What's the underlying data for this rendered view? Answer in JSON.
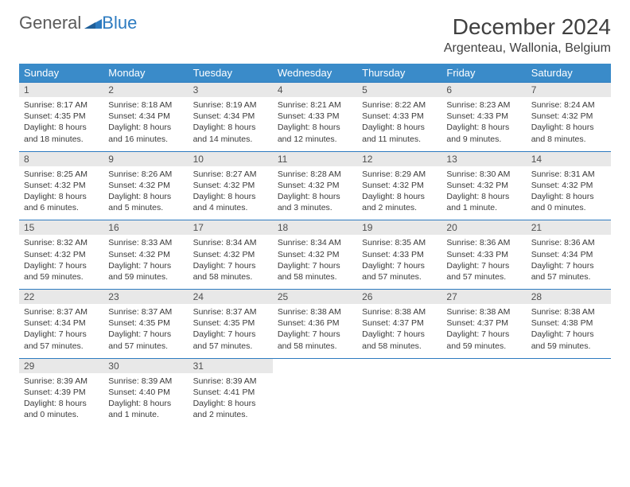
{
  "brand": {
    "part1": "General",
    "part2": "Blue"
  },
  "title": "December 2024",
  "location": "Argenteau, Wallonia, Belgium",
  "colors": {
    "header_bg": "#3a8bc9",
    "header_text": "#ffffff",
    "daynum_bg": "#e8e8e8",
    "rule": "#2d7bc0",
    "brand_blue": "#2d7bc0",
    "text": "#3a3a3a"
  },
  "weekdays": [
    "Sunday",
    "Monday",
    "Tuesday",
    "Wednesday",
    "Thursday",
    "Friday",
    "Saturday"
  ],
  "days": [
    {
      "n": "1",
      "sunrise": "Sunrise: 8:17 AM",
      "sunset": "Sunset: 4:35 PM",
      "daylight1": "Daylight: 8 hours",
      "daylight2": "and 18 minutes."
    },
    {
      "n": "2",
      "sunrise": "Sunrise: 8:18 AM",
      "sunset": "Sunset: 4:34 PM",
      "daylight1": "Daylight: 8 hours",
      "daylight2": "and 16 minutes."
    },
    {
      "n": "3",
      "sunrise": "Sunrise: 8:19 AM",
      "sunset": "Sunset: 4:34 PM",
      "daylight1": "Daylight: 8 hours",
      "daylight2": "and 14 minutes."
    },
    {
      "n": "4",
      "sunrise": "Sunrise: 8:21 AM",
      "sunset": "Sunset: 4:33 PM",
      "daylight1": "Daylight: 8 hours",
      "daylight2": "and 12 minutes."
    },
    {
      "n": "5",
      "sunrise": "Sunrise: 8:22 AM",
      "sunset": "Sunset: 4:33 PM",
      "daylight1": "Daylight: 8 hours",
      "daylight2": "and 11 minutes."
    },
    {
      "n": "6",
      "sunrise": "Sunrise: 8:23 AM",
      "sunset": "Sunset: 4:33 PM",
      "daylight1": "Daylight: 8 hours",
      "daylight2": "and 9 minutes."
    },
    {
      "n": "7",
      "sunrise": "Sunrise: 8:24 AM",
      "sunset": "Sunset: 4:32 PM",
      "daylight1": "Daylight: 8 hours",
      "daylight2": "and 8 minutes."
    },
    {
      "n": "8",
      "sunrise": "Sunrise: 8:25 AM",
      "sunset": "Sunset: 4:32 PM",
      "daylight1": "Daylight: 8 hours",
      "daylight2": "and 6 minutes."
    },
    {
      "n": "9",
      "sunrise": "Sunrise: 8:26 AM",
      "sunset": "Sunset: 4:32 PM",
      "daylight1": "Daylight: 8 hours",
      "daylight2": "and 5 minutes."
    },
    {
      "n": "10",
      "sunrise": "Sunrise: 8:27 AM",
      "sunset": "Sunset: 4:32 PM",
      "daylight1": "Daylight: 8 hours",
      "daylight2": "and 4 minutes."
    },
    {
      "n": "11",
      "sunrise": "Sunrise: 8:28 AM",
      "sunset": "Sunset: 4:32 PM",
      "daylight1": "Daylight: 8 hours",
      "daylight2": "and 3 minutes."
    },
    {
      "n": "12",
      "sunrise": "Sunrise: 8:29 AM",
      "sunset": "Sunset: 4:32 PM",
      "daylight1": "Daylight: 8 hours",
      "daylight2": "and 2 minutes."
    },
    {
      "n": "13",
      "sunrise": "Sunrise: 8:30 AM",
      "sunset": "Sunset: 4:32 PM",
      "daylight1": "Daylight: 8 hours",
      "daylight2": "and 1 minute."
    },
    {
      "n": "14",
      "sunrise": "Sunrise: 8:31 AM",
      "sunset": "Sunset: 4:32 PM",
      "daylight1": "Daylight: 8 hours",
      "daylight2": "and 0 minutes."
    },
    {
      "n": "15",
      "sunrise": "Sunrise: 8:32 AM",
      "sunset": "Sunset: 4:32 PM",
      "daylight1": "Daylight: 7 hours",
      "daylight2": "and 59 minutes."
    },
    {
      "n": "16",
      "sunrise": "Sunrise: 8:33 AM",
      "sunset": "Sunset: 4:32 PM",
      "daylight1": "Daylight: 7 hours",
      "daylight2": "and 59 minutes."
    },
    {
      "n": "17",
      "sunrise": "Sunrise: 8:34 AM",
      "sunset": "Sunset: 4:32 PM",
      "daylight1": "Daylight: 7 hours",
      "daylight2": "and 58 minutes."
    },
    {
      "n": "18",
      "sunrise": "Sunrise: 8:34 AM",
      "sunset": "Sunset: 4:32 PM",
      "daylight1": "Daylight: 7 hours",
      "daylight2": "and 58 minutes."
    },
    {
      "n": "19",
      "sunrise": "Sunrise: 8:35 AM",
      "sunset": "Sunset: 4:33 PM",
      "daylight1": "Daylight: 7 hours",
      "daylight2": "and 57 minutes."
    },
    {
      "n": "20",
      "sunrise": "Sunrise: 8:36 AM",
      "sunset": "Sunset: 4:33 PM",
      "daylight1": "Daylight: 7 hours",
      "daylight2": "and 57 minutes."
    },
    {
      "n": "21",
      "sunrise": "Sunrise: 8:36 AM",
      "sunset": "Sunset: 4:34 PM",
      "daylight1": "Daylight: 7 hours",
      "daylight2": "and 57 minutes."
    },
    {
      "n": "22",
      "sunrise": "Sunrise: 8:37 AM",
      "sunset": "Sunset: 4:34 PM",
      "daylight1": "Daylight: 7 hours",
      "daylight2": "and 57 minutes."
    },
    {
      "n": "23",
      "sunrise": "Sunrise: 8:37 AM",
      "sunset": "Sunset: 4:35 PM",
      "daylight1": "Daylight: 7 hours",
      "daylight2": "and 57 minutes."
    },
    {
      "n": "24",
      "sunrise": "Sunrise: 8:37 AM",
      "sunset": "Sunset: 4:35 PM",
      "daylight1": "Daylight: 7 hours",
      "daylight2": "and 57 minutes."
    },
    {
      "n": "25",
      "sunrise": "Sunrise: 8:38 AM",
      "sunset": "Sunset: 4:36 PM",
      "daylight1": "Daylight: 7 hours",
      "daylight2": "and 58 minutes."
    },
    {
      "n": "26",
      "sunrise": "Sunrise: 8:38 AM",
      "sunset": "Sunset: 4:37 PM",
      "daylight1": "Daylight: 7 hours",
      "daylight2": "and 58 minutes."
    },
    {
      "n": "27",
      "sunrise": "Sunrise: 8:38 AM",
      "sunset": "Sunset: 4:37 PM",
      "daylight1": "Daylight: 7 hours",
      "daylight2": "and 59 minutes."
    },
    {
      "n": "28",
      "sunrise": "Sunrise: 8:38 AM",
      "sunset": "Sunset: 4:38 PM",
      "daylight1": "Daylight: 7 hours",
      "daylight2": "and 59 minutes."
    },
    {
      "n": "29",
      "sunrise": "Sunrise: 8:39 AM",
      "sunset": "Sunset: 4:39 PM",
      "daylight1": "Daylight: 8 hours",
      "daylight2": "and 0 minutes."
    },
    {
      "n": "30",
      "sunrise": "Sunrise: 8:39 AM",
      "sunset": "Sunset: 4:40 PM",
      "daylight1": "Daylight: 8 hours",
      "daylight2": "and 1 minute."
    },
    {
      "n": "31",
      "sunrise": "Sunrise: 8:39 AM",
      "sunset": "Sunset: 4:41 PM",
      "daylight1": "Daylight: 8 hours",
      "daylight2": "and 2 minutes."
    }
  ],
  "layout": {
    "start_weekday_index": 0,
    "total_cells": 35,
    "cols": 7
  }
}
